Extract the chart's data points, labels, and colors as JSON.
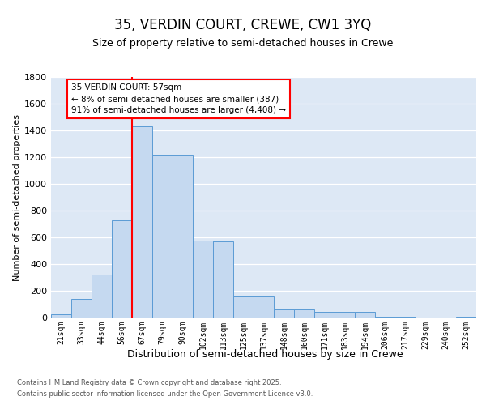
{
  "title1": "35, VERDIN COURT, CREWE, CW1 3YQ",
  "title2": "Size of property relative to semi-detached houses in Crewe",
  "xlabel": "Distribution of semi-detached houses by size in Crewe",
  "ylabel": "Number of semi-detached properties",
  "categories": [
    "21sqm",
    "33sqm",
    "44sqm",
    "56sqm",
    "67sqm",
    "79sqm",
    "90sqm",
    "102sqm",
    "113sqm",
    "125sqm",
    "137sqm",
    "148sqm",
    "160sqm",
    "171sqm",
    "183sqm",
    "194sqm",
    "206sqm",
    "217sqm",
    "229sqm",
    "240sqm",
    "252sqm"
  ],
  "values": [
    25,
    140,
    325,
    730,
    1430,
    1220,
    1220,
    575,
    570,
    160,
    160,
    65,
    65,
    48,
    48,
    48,
    12,
    12,
    4,
    4,
    12
  ],
  "bar_color": "#c5d9f0",
  "bar_edge_color": "#5b9bd5",
  "vline_color": "red",
  "annotation_title": "35 VERDIN COURT: 57sqm",
  "annotation_line1": "← 8% of semi-detached houses are smaller (387)",
  "annotation_line2": "91% of semi-detached houses are larger (4,408) →",
  "footer1": "Contains HM Land Registry data © Crown copyright and database right 2025.",
  "footer2": "Contains public sector information licensed under the Open Government Licence v3.0.",
  "ylim": [
    0,
    1800
  ],
  "yticks": [
    0,
    200,
    400,
    600,
    800,
    1000,
    1200,
    1400,
    1600,
    1800
  ],
  "bg_color": "#dde8f5",
  "grid_color": "white",
  "title1_fontsize": 12,
  "title2_fontsize": 9,
  "ylabel_fontsize": 8,
  "xlabel_fontsize": 9,
  "tick_fontsize": 7,
  "footer_fontsize": 6,
  "annot_fontsize": 7.5
}
